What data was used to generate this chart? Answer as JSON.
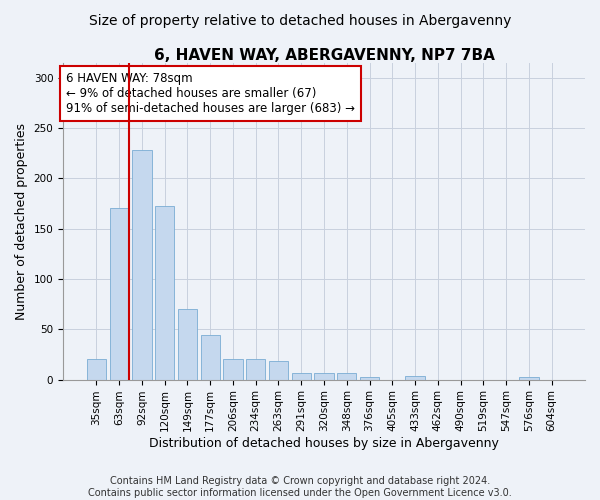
{
  "title": "6, HAVEN WAY, ABERGAVENNY, NP7 7BA",
  "subtitle": "Size of property relative to detached houses in Abergavenny",
  "xlabel": "Distribution of detached houses by size in Abergavenny",
  "ylabel": "Number of detached properties",
  "categories": [
    "35sqm",
    "63sqm",
    "92sqm",
    "120sqm",
    "149sqm",
    "177sqm",
    "206sqm",
    "234sqm",
    "263sqm",
    "291sqm",
    "320sqm",
    "348sqm",
    "376sqm",
    "405sqm",
    "433sqm",
    "462sqm",
    "490sqm",
    "519sqm",
    "547sqm",
    "576sqm",
    "604sqm"
  ],
  "values": [
    20,
    170,
    228,
    172,
    70,
    44,
    20,
    20,
    18,
    7,
    7,
    7,
    3,
    0,
    4,
    0,
    0,
    0,
    0,
    3,
    0
  ],
  "bar_color": "#c5d8ee",
  "bar_edgecolor": "#7aadd4",
  "vline_color": "#cc0000",
  "annotation_text": "6 HAVEN WAY: 78sqm\n← 9% of detached houses are smaller (67)\n91% of semi-detached houses are larger (683) →",
  "annotation_box_color": "#ffffff",
  "annotation_box_edgecolor": "#cc0000",
  "ylim": [
    0,
    315
  ],
  "yticks": [
    0,
    50,
    100,
    150,
    200,
    250,
    300
  ],
  "footnote": "Contains HM Land Registry data © Crown copyright and database right 2024.\nContains public sector information licensed under the Open Government Licence v3.0.",
  "title_fontsize": 11,
  "subtitle_fontsize": 10,
  "axis_label_fontsize": 9,
  "tick_fontsize": 7.5,
  "annotation_fontsize": 8.5,
  "footnote_fontsize": 7,
  "background_color": "#eef2f8",
  "axes_background": "#eef2f8",
  "grid_color": "#c8d0de"
}
